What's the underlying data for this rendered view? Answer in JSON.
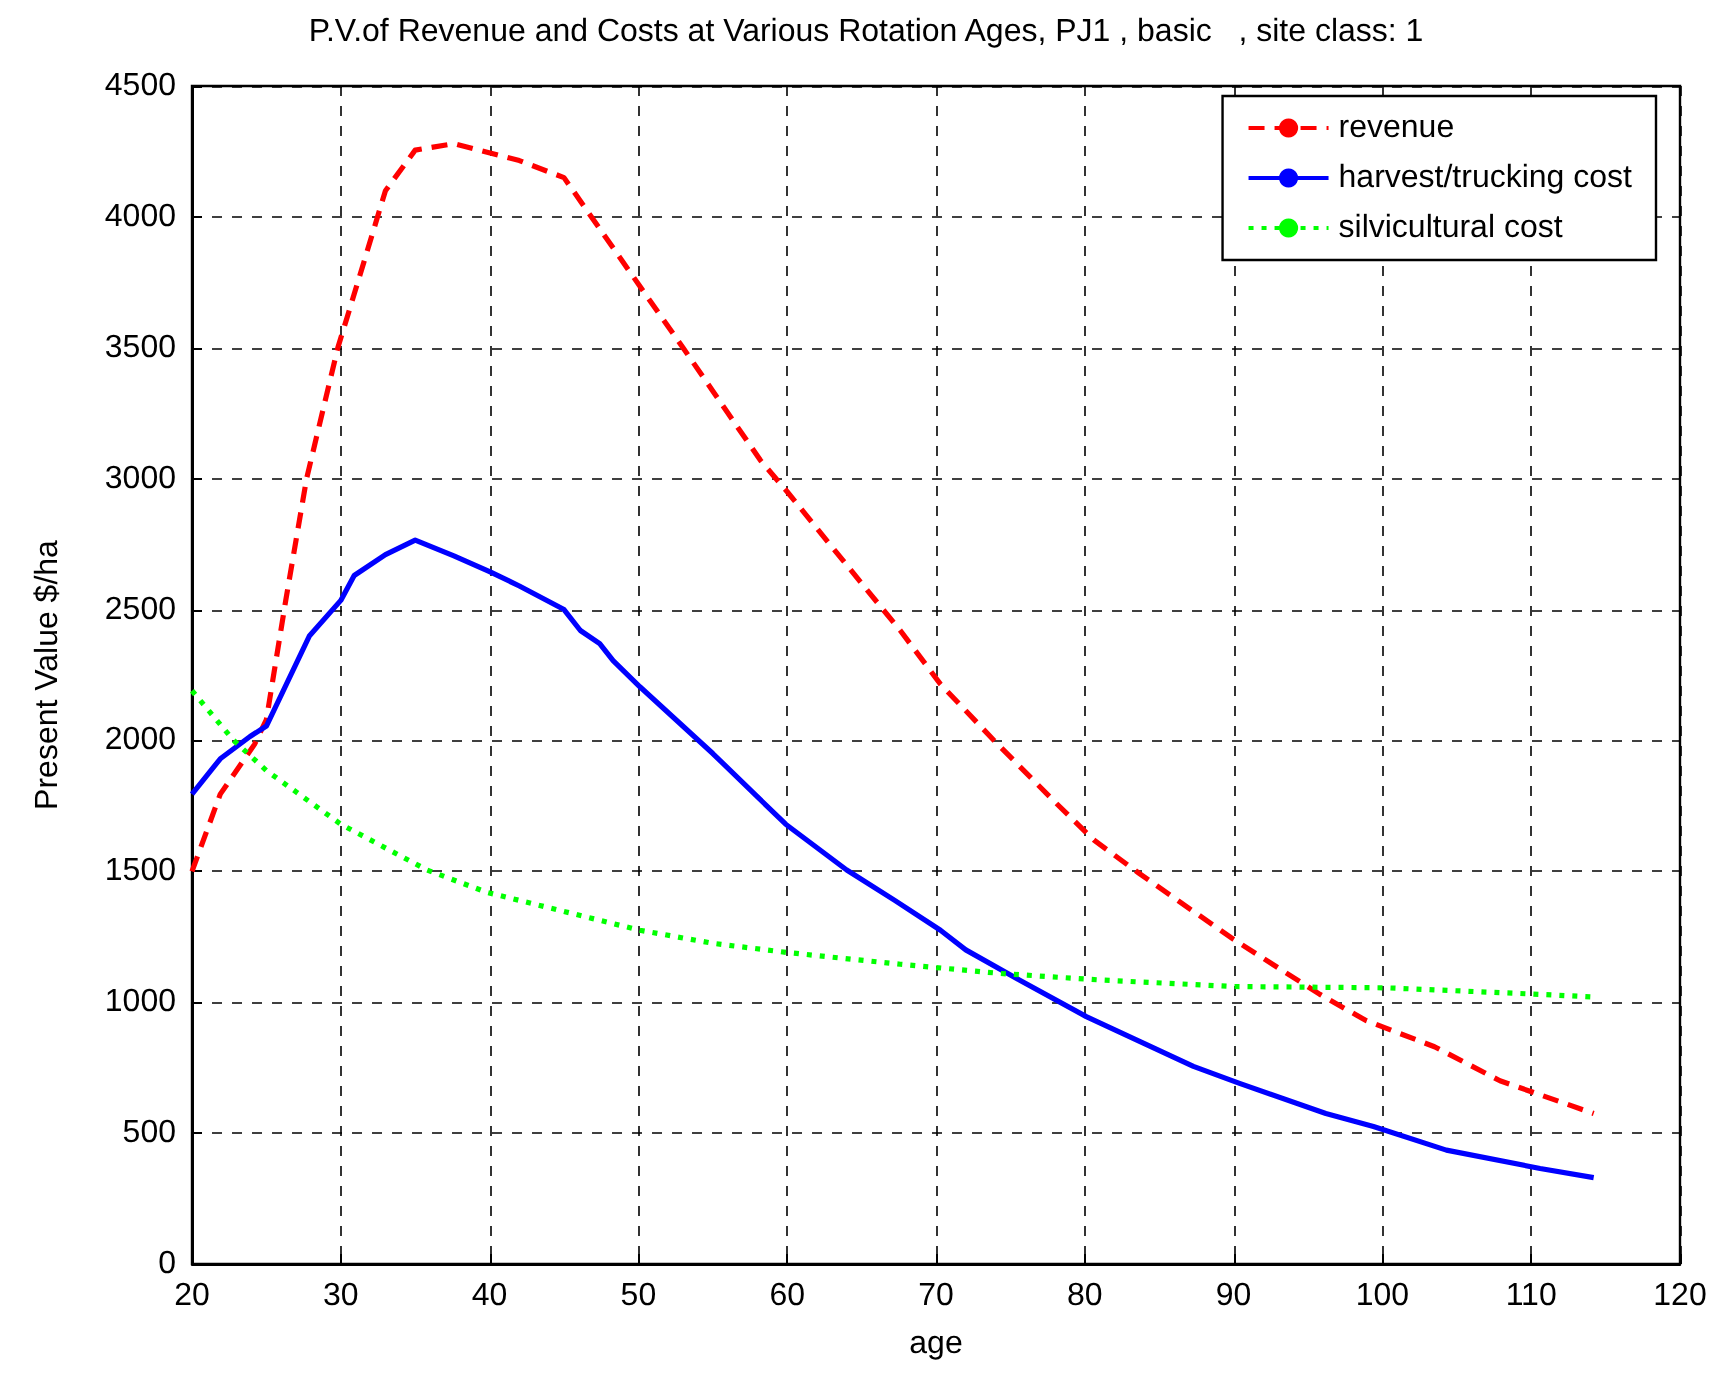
{
  "chart_data": {
    "type": "line",
    "title": "P.V.of Revenue and Costs at Various Rotation Ages, PJ1 , basic   , site class: 1",
    "xlabel": "age",
    "ylabel": "Present Value $/ha",
    "xlim": [
      20,
      120
    ],
    "xticks": [
      20,
      30,
      40,
      50,
      60,
      70,
      80,
      90,
      100,
      110,
      120
    ],
    "ylim": [
      0,
      4500
    ],
    "yticks": [
      0,
      500,
      1000,
      1500,
      2000,
      2500,
      3000,
      3500,
      4000,
      4500
    ],
    "grid": true,
    "legend": "top right",
    "marker": "none",
    "series": [
      {
        "name": "revenue",
        "color": "#ff0000",
        "line_style": "dashed",
        "x": [
          20,
          21.9,
          24.2,
          25,
          26.3,
          27.7,
          29.8,
          30.9,
          33,
          35,
          37.6,
          42,
          45,
          50.1,
          53,
          58.2,
          60,
          65,
          67.6,
          70.3,
          73.9,
          77.9,
          80.6,
          83.7,
          90,
          95.8,
          98.9,
          103.5,
          107.9,
          114.2
        ],
        "values": [
          1500,
          1795,
          1985,
          2080,
          2535,
          3000,
          3500,
          3705,
          4100,
          4255,
          4280,
          4215,
          4150,
          3735,
          3500,
          3070,
          2950,
          2600,
          2420,
          2215,
          2000,
          1770,
          1620,
          1490,
          1240,
          1030,
          930,
          830,
          700,
          575
        ]
      },
      {
        "name": "harvest/trucking cost",
        "color": "#0000ff",
        "line_style": "solid",
        "x": [
          20,
          21.9,
          23.9,
          25,
          27.9,
          30,
          30.9,
          33,
          35,
          37.6,
          40,
          42,
          45,
          46.1,
          47.4,
          48.3,
          50.1,
          55,
          57.9,
          59.9,
          64,
          67.2,
          70.3,
          72,
          75.6,
          80.1,
          87.3,
          90.4,
          96.2,
          99.4,
          104.3,
          110.6,
          114.2
        ],
        "values": [
          1795,
          1930,
          2015,
          2055,
          2400,
          2535,
          2630,
          2710,
          2765,
          2705,
          2645,
          2590,
          2500,
          2420,
          2370,
          2305,
          2205,
          1950,
          1790,
          1680,
          1505,
          1390,
          1275,
          1200,
          1085,
          945,
          755,
          690,
          575,
          525,
          435,
          365,
          330
        ]
      },
      {
        "name": "silvicultural cost",
        "color": "#00ff00",
        "line_style": "dotted",
        "x": [
          20,
          22.8,
          25,
          30,
          35.8,
          39.8,
          50.1,
          55,
          60,
          67.6,
          74.3,
          81,
          90,
          100.3,
          110.6,
          114.2
        ],
        "values": [
          2190,
          2000,
          1885,
          1680,
          1505,
          1420,
          1275,
          1225,
          1190,
          1145,
          1110,
          1085,
          1060,
          1055,
          1030,
          1020
        ]
      }
    ]
  }
}
